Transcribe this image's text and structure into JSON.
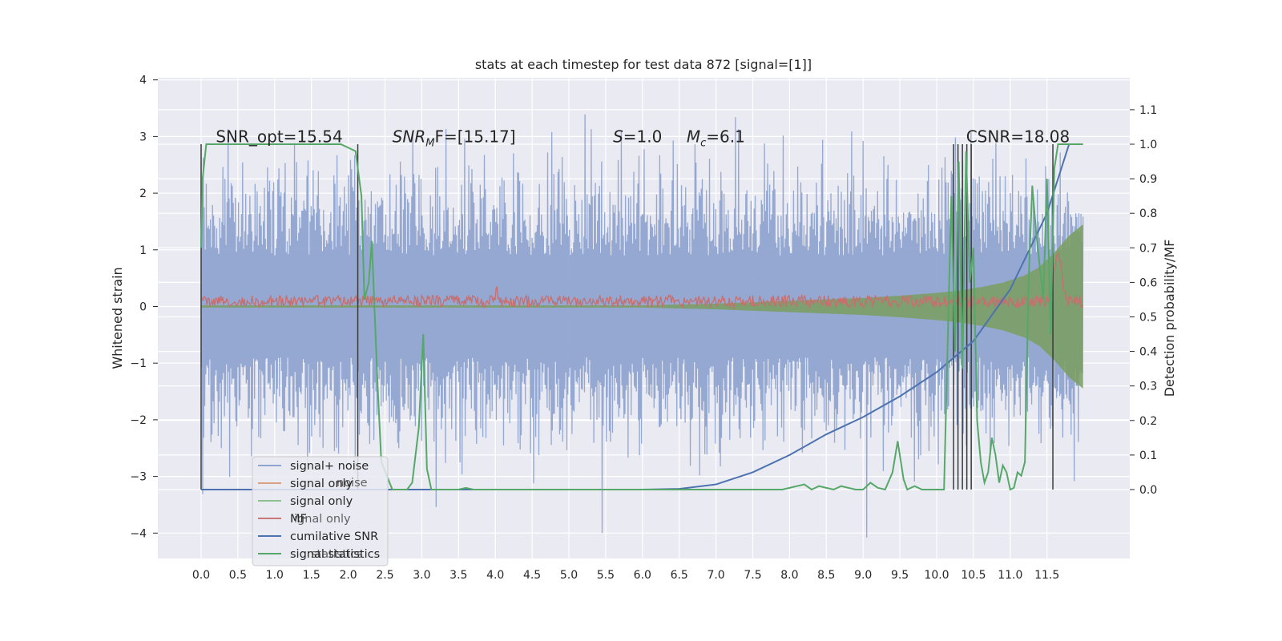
{
  "chart_data": {
    "type": "line",
    "title": "stats at each timestep for test data 872 [signal=[1]]",
    "xlabel": "",
    "ylabel": "Whitened strain",
    "ylabel_right": "Detection probability/MF",
    "xlim": [
      -0.58,
      12.6
    ],
    "ylim": [
      -4.4,
      4.1
    ],
    "ylim_right": [
      -0.195,
      1.2
    ],
    "x_ticks": [
      "0.0",
      "0.5",
      "1.0",
      "1.5",
      "2.0",
      "2.5",
      "3.0",
      "3.5",
      "4.0",
      "4.5",
      "5.0",
      "5.5",
      "6.0",
      "6.5",
      "7.0",
      "7.5",
      "8.0",
      "8.5",
      "9.0",
      "9.5",
      "10.0",
      "10.5",
      "11.0",
      "11.5"
    ],
    "y_ticks": [
      "4",
      "3",
      "2",
      "1",
      "0",
      "−1",
      "−2",
      "−3",
      "−4"
    ],
    "y_ticks_right": [
      "1.1",
      "1.0",
      "0.9",
      "0.8",
      "0.7",
      "0.6",
      "0.5",
      "0.4",
      "0.3",
      "0.2",
      "0.1",
      "0.0"
    ],
    "grid": true,
    "legend_position": "lower-left",
    "annotations": [
      {
        "prefix": "SNR_opt=15.54",
        "sub": "",
        "suffix": "",
        "x": 0.2,
        "y": 3.0
      },
      {
        "prefix": "SNR",
        "sub": "M",
        "suffix": "F=[15.17]",
        "x": 2.6,
        "y": 3.0
      },
      {
        "prefix": "S",
        "sub": "",
        "suffix": "=1.0",
        "x": 5.6,
        "y": 3.0
      },
      {
        "prefix": "M",
        "sub": "c",
        "suffix": "=6.1",
        "x": 6.6,
        "y": 3.0
      },
      {
        "prefix": "CSNR=18.08",
        "sub": "",
        "suffix": "",
        "x": 10.4,
        "y": 3.0
      }
    ],
    "legend": [
      {
        "label": "signal+ noise",
        "color": "#8fa4d0"
      },
      {
        "label": "signal only",
        "color": "#d9a17f"
      },
      {
        "label": "signal only",
        "color": "#8cc08c"
      },
      {
        "label": "MF",
        "color": "#c87878"
      },
      {
        "label": "cumilative SNR",
        "color": "#4c72b0"
      },
      {
        "label": "signal statistics",
        "color": "#55a868"
      }
    ],
    "legend_ghost_text": [
      "noise",
      "ignal only",
      "statistics"
    ],
    "colors": {
      "noise": "#8fa4d0",
      "signal_fill": "#7a9e5e",
      "mf": "#c86e6e",
      "cumulative_snr": "#4c72b0",
      "statistics": "#55a868",
      "vertical_lines": "#3a3a3a",
      "background": "#eaeaf2",
      "grid": "#ffffff"
    },
    "series": [
      {
        "name": "signal+ noise",
        "x_range": [
          0.0,
          11.99
        ],
        "envelope": {
          "typical_abs": 1.5,
          "max": 3.7,
          "min": -4.1
        }
      },
      {
        "name": "signal only",
        "x": [
          0.0,
          6.0,
          7.0,
          8.0,
          9.0,
          9.5,
          10.0,
          10.3,
          10.6,
          10.9,
          11.2,
          11.4,
          11.6,
          11.8,
          11.99
        ],
        "amplitude": [
          0.02,
          0.02,
          0.05,
          0.1,
          0.15,
          0.19,
          0.24,
          0.28,
          0.34,
          0.42,
          0.55,
          0.7,
          0.95,
          1.25,
          1.45
        ]
      },
      {
        "name": "MF",
        "axis": "right",
        "x_range": [
          0.0,
          11.99
        ],
        "base": 0.545,
        "peak": {
          "x": 11.65,
          "y": 0.69
        }
      },
      {
        "name": "cumilative SNR",
        "axis": "right",
        "x": [
          0.0,
          6.0,
          6.5,
          7.0,
          7.5,
          8.0,
          8.5,
          9.0,
          9.5,
          10.0,
          10.5,
          11.0,
          11.5,
          11.8
        ],
        "y": [
          0.0,
          0.0,
          0.002,
          0.015,
          0.05,
          0.1,
          0.16,
          0.21,
          0.27,
          0.34,
          0.43,
          0.58,
          0.8,
          1.0
        ]
      },
      {
        "name": "signal statistics",
        "axis": "right",
        "x": [
          0.0,
          0.02,
          0.07,
          0.1,
          1.9,
          2.1,
          2.18,
          2.22,
          2.28,
          2.32,
          2.4,
          2.45,
          2.6,
          2.8,
          2.87,
          2.96,
          3.02,
          3.07,
          3.13,
          3.5,
          3.6,
          3.7,
          7.8,
          7.9,
          8.0,
          8.1,
          8.2,
          8.3,
          8.4,
          8.5,
          8.6,
          8.7,
          8.8,
          8.9,
          9.0,
          9.1,
          9.2,
          9.3,
          9.4,
          9.47,
          9.55,
          9.6,
          9.7,
          9.8,
          9.9,
          10.0,
          10.1,
          10.2,
          10.25,
          10.3,
          10.35,
          10.4,
          10.45,
          10.5,
          10.55,
          10.6,
          10.65,
          10.7,
          10.75,
          10.8,
          10.85,
          10.9,
          10.95,
          11.0,
          11.05,
          11.1,
          11.15,
          11.2,
          11.25,
          11.3,
          11.35,
          11.4,
          11.45,
          11.5,
          11.55,
          11.6,
          11.65,
          11.7,
          11.99
        ],
        "y": [
          0.7,
          0.9,
          1.0,
          1.0,
          1.0,
          0.98,
          0.85,
          0.55,
          0.6,
          0.72,
          0.3,
          0.08,
          0.0,
          0.0,
          0.02,
          0.18,
          0.45,
          0.06,
          0.0,
          0.0,
          0.005,
          0.0,
          0.0,
          0.0,
          0.005,
          0.01,
          0.015,
          0.0,
          0.01,
          0.005,
          0.0,
          0.01,
          0.005,
          0.0,
          0.0,
          0.02,
          0.005,
          0.0,
          0.05,
          0.14,
          0.03,
          0.0,
          0.01,
          0.0,
          0.0,
          0.0,
          0.0,
          0.85,
          0.4,
          0.95,
          0.35,
          0.98,
          0.6,
          0.7,
          0.2,
          0.08,
          0.02,
          0.05,
          0.15,
          0.1,
          0.02,
          0.07,
          0.05,
          0.0,
          0.005,
          0.05,
          0.04,
          0.08,
          0.6,
          0.88,
          0.75,
          0.65,
          0.55,
          0.9,
          0.45,
          0.93,
          1.0,
          1.0,
          1.0
        ]
      }
    ],
    "vertical_lines_x": [
      0.0,
      2.13,
      10.23,
      10.29,
      10.35,
      10.41,
      10.47,
      11.58
    ]
  }
}
